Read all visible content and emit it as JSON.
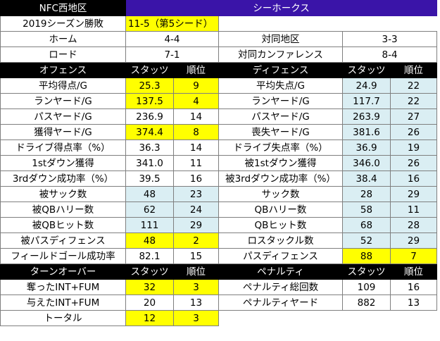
{
  "header": {
    "division": "NFC西地区",
    "team": "シーホークス"
  },
  "record": {
    "label": "2019シーズン勝敗",
    "value": "11-5（第5シード）",
    "rows": [
      {
        "l1": "ホーム",
        "v1": "4-4",
        "l2": "対同地区",
        "v2": "3-3"
      },
      {
        "l1": "ロード",
        "v1": "7-1",
        "l2": "対同カンファレンス",
        "v2": "8-4"
      }
    ]
  },
  "columns": {
    "offense": "オフェンス",
    "defense": "ディフェンス",
    "turnover": "ターンオーバー",
    "penalty": "ペナルティ",
    "stats": "スタッツ",
    "rank": "順位"
  },
  "stats_rows": [
    {
      "o_label": "平均得点/G",
      "o_stat": "25.3",
      "o_rank": "9",
      "d_label": "平均失点/G",
      "d_stat": "24.9",
      "d_rank": "22"
    },
    {
      "o_label": "ランヤード/G",
      "o_stat": "137.5",
      "o_rank": "4",
      "d_label": "ランヤード/G",
      "d_stat": "117.7",
      "d_rank": "22"
    },
    {
      "o_label": "パスヤード/G",
      "o_stat": "236.9",
      "o_rank": "14",
      "d_label": "パスヤード/G",
      "d_stat": "263.9",
      "d_rank": "27"
    },
    {
      "o_label": "獲得ヤード/G",
      "o_stat": "374.4",
      "o_rank": "8",
      "d_label": "喪失ヤード/G",
      "d_stat": "381.6",
      "d_rank": "26"
    },
    {
      "o_label": "ドライブ得点率（%）",
      "o_stat": "36.3",
      "o_rank": "14",
      "d_label": "ドライブ失点率（%）",
      "d_stat": "36.9",
      "d_rank": "19"
    },
    {
      "o_label": "1stダウン獲得",
      "o_stat": "341.0",
      "o_rank": "11",
      "d_label": "被1stダウン獲得",
      "d_stat": "346.0",
      "d_rank": "26"
    },
    {
      "o_label": "3rdダウン成功率（%）",
      "o_stat": "39.5",
      "o_rank": "16",
      "d_label": "被3rdダウン成功率（%）",
      "d_stat": "38.4",
      "d_rank": "16"
    },
    {
      "o_label": "被サック数",
      "o_stat": "48",
      "o_rank": "23",
      "d_label": "サック数",
      "d_stat": "28",
      "d_rank": "29"
    },
    {
      "o_label": "被QBハリー数",
      "o_stat": "62",
      "o_rank": "24",
      "d_label": "QBハリー数",
      "d_stat": "58",
      "d_rank": "11"
    },
    {
      "o_label": "被QBヒット数",
      "o_stat": "111",
      "o_rank": "29",
      "d_label": "QBヒット数",
      "d_stat": "68",
      "d_rank": "28"
    },
    {
      "o_label": "被パスディフェンス",
      "o_stat": "48",
      "o_rank": "2",
      "d_label": "ロスタックル数",
      "d_stat": "52",
      "d_rank": "29"
    },
    {
      "o_label": "フィールドゴール成功率",
      "o_stat": "82.1",
      "o_rank": "15",
      "d_label": "パスディフェンス",
      "d_stat": "88",
      "d_rank": "7"
    }
  ],
  "bottom_rows": [
    {
      "t_label": "奪ったINT+FUM",
      "t_stat": "32",
      "t_rank": "3",
      "p_label": "ペナルティ総回数",
      "p_stat": "109",
      "p_rank": "16"
    },
    {
      "t_label": "与えたINT+FUM",
      "t_stat": "20",
      "t_rank": "13",
      "p_label": "ペナルティヤード",
      "p_stat": "882",
      "p_rank": "13"
    },
    {
      "t_label": "トータル",
      "t_stat": "12",
      "t_rank": "3"
    }
  ],
  "highlight_colors": {
    "top_rank": "#ffff00",
    "bottom_rank": "#daeef3",
    "team_header": "#3a14a8"
  }
}
